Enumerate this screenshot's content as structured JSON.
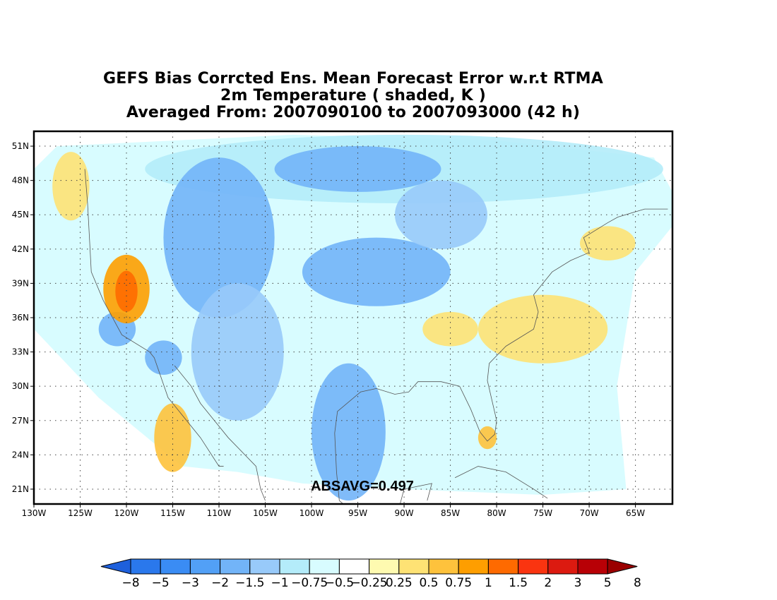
{
  "title": {
    "line1": "GEFS Bias Corrcted Ens. Mean Forecast Error w.r.t RTMA",
    "line2": "2m Temperature ( shaded, K )",
    "line3": "Averaged From: 2007090100 to 2007093000 (42 h)"
  },
  "annotation": "ABSAVG=0.497",
  "map": {
    "lon_range": [
      -130,
      -61
    ],
    "lat_range": [
      19.7,
      52.3
    ],
    "lon_ticks": [
      {
        "value": -130,
        "label": "130W"
      },
      {
        "value": -125,
        "label": "125W"
      },
      {
        "value": -120,
        "label": "120W"
      },
      {
        "value": -115,
        "label": "115W"
      },
      {
        "value": -110,
        "label": "110W"
      },
      {
        "value": -105,
        "label": "105W"
      },
      {
        "value": -100,
        "label": "100W"
      },
      {
        "value": -95,
        "label": "95W"
      },
      {
        "value": -90,
        "label": "90W"
      },
      {
        "value": -85,
        "label": "85W"
      },
      {
        "value": -80,
        "label": "80W"
      },
      {
        "value": -75,
        "label": "75W"
      },
      {
        "value": -70,
        "label": "70W"
      },
      {
        "value": -65,
        "label": "65W"
      }
    ],
    "lat_ticks": [
      {
        "value": 21,
        "label": "21N"
      },
      {
        "value": 24,
        "label": "24N"
      },
      {
        "value": 27,
        "label": "27N"
      },
      {
        "value": 30,
        "label": "30N"
      },
      {
        "value": 33,
        "label": "33N"
      },
      {
        "value": 36,
        "label": "36N"
      },
      {
        "value": 39,
        "label": "39N"
      },
      {
        "value": 42,
        "label": "42N"
      },
      {
        "value": 45,
        "label": "45N"
      },
      {
        "value": 48,
        "label": "48N"
      },
      {
        "value": 51,
        "label": "51N"
      }
    ],
    "grid": true
  },
  "colorbar": {
    "colors": [
      "#1e60dc",
      "#2a78ec",
      "#3a8cf4",
      "#52a0f6",
      "#72b4f8",
      "#98cafa",
      "#b4ecfa",
      "#d8fcff",
      "#ffffff",
      "#fefab0",
      "#fee274",
      "#fec23c",
      "#fe9e00",
      "#fe6a00",
      "#fa3410",
      "#dc1a10",
      "#b80006",
      "#9a0000"
    ],
    "labels": [
      "-8",
      "-5",
      "-3",
      "-2",
      "-1.5",
      "-1",
      "-0.75",
      "-0.5",
      "-0.25",
      "0.25",
      "0.5",
      "0.75",
      "1",
      "1.5",
      "2",
      "3",
      "5",
      "8"
    ]
  },
  "field": {
    "regions": [
      {
        "lon": -96,
        "lat": 37,
        "rx": 30,
        "ry": 14,
        "level": -0.5
      },
      {
        "lon": -90,
        "lat": 49,
        "rx": 28,
        "ry": 3,
        "level": -0.75
      },
      {
        "lon": -110,
        "lat": 43,
        "rx": 6,
        "ry": 7,
        "level": -1.5
      },
      {
        "lon": -108,
        "lat": 33,
        "rx": 5,
        "ry": 6,
        "level": -1
      },
      {
        "lon": -93,
        "lat": 40,
        "rx": 8,
        "ry": 3,
        "level": -1.5
      },
      {
        "lon": -95,
        "lat": 49,
        "rx": 9,
        "ry": 2,
        "level": -1.5
      },
      {
        "lon": -86,
        "lat": 45,
        "rx": 5,
        "ry": 3,
        "level": -1
      },
      {
        "lon": -96,
        "lat": 26,
        "rx": 4,
        "ry": 6,
        "level": -1.5
      },
      {
        "lon": -121,
        "lat": 35,
        "rx": 2,
        "ry": 1.5,
        "level": -1.5
      },
      {
        "lon": -116,
        "lat": 32.5,
        "rx": 2,
        "ry": 1.5,
        "level": -1.5
      },
      {
        "lon": -126,
        "lat": 47.5,
        "rx": 2,
        "ry": 3,
        "level": 0.5
      },
      {
        "lon": -120,
        "lat": 38.5,
        "rx": 2.5,
        "ry": 3,
        "level": 1
      },
      {
        "lon": -120,
        "lat": 38.3,
        "rx": 1.2,
        "ry": 1.8,
        "level": 1.5
      },
      {
        "lon": -115,
        "lat": 25.5,
        "rx": 2,
        "ry": 3,
        "level": 0.75
      },
      {
        "lon": -75,
        "lat": 35,
        "rx": 7,
        "ry": 3,
        "level": 0.5
      },
      {
        "lon": -85,
        "lat": 35,
        "rx": 3,
        "ry": 1.5,
        "level": 0.5
      },
      {
        "lon": -68,
        "lat": 42.5,
        "rx": 3,
        "ry": 1.5,
        "level": 0.5
      },
      {
        "lon": -81,
        "lat": 25.5,
        "rx": 1,
        "ry": 1,
        "level": 0.75
      }
    ]
  }
}
